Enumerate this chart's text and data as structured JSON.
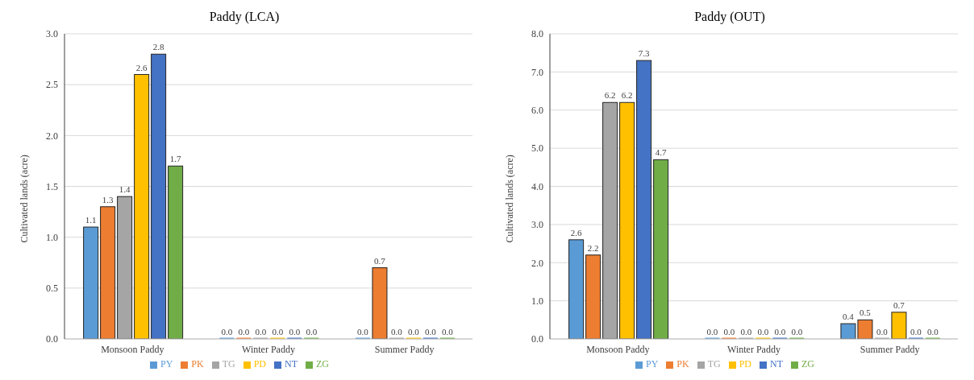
{
  "chart_data": [
    {
      "type": "bar",
      "title": "Paddy (LCA)",
      "ylabel": "Cultivated lands (acre)",
      "categories": [
        "Monsoon Paddy",
        "Winter Paddy",
        "Summer Paddy"
      ],
      "series": [
        {
          "name": "PY",
          "color": "#5b9bd5",
          "values": [
            1.1,
            0,
            0
          ],
          "value_labels": [
            "1.1",
            "0.0",
            "0.0"
          ]
        },
        {
          "name": "PK",
          "color": "#ed7d31",
          "values": [
            1.3,
            0,
            0.7
          ],
          "value_labels": [
            "1.3",
            "0.0",
            "0.7"
          ]
        },
        {
          "name": "TG",
          "color": "#a5a5a5",
          "values": [
            1.4,
            0,
            0
          ],
          "value_labels": [
            "1.4",
            "0.0",
            "0.0"
          ]
        },
        {
          "name": "PD",
          "color": "#ffc000",
          "values": [
            2.6,
            0,
            0
          ],
          "value_labels": [
            "2.6",
            "0.0",
            "0.0"
          ]
        },
        {
          "name": "NT",
          "color": "#4472c4",
          "values": [
            2.8,
            0,
            0
          ],
          "value_labels": [
            "2.8",
            "0.0",
            "0.0"
          ]
        },
        {
          "name": "ZG",
          "color": "#70ad47",
          "values": [
            1.7,
            0,
            0
          ],
          "value_labels": [
            "1.7",
            "0.0",
            "0.0"
          ]
        }
      ],
      "ylim": [
        0,
        3
      ],
      "yticks": [
        {
          "value": 0,
          "label": "0.0"
        },
        {
          "value": 0.5,
          "label": "0.5"
        },
        {
          "value": 1,
          "label": "1.0"
        },
        {
          "value": 1.5,
          "label": "1.5"
        },
        {
          "value": 2,
          "label": "2.0"
        },
        {
          "value": 2.5,
          "label": "2.5"
        },
        {
          "value": 3,
          "label": "3.0"
        }
      ],
      "grid": "y",
      "legend": "bottom"
    },
    {
      "type": "bar",
      "title": "Paddy (OUT)",
      "ylabel": "Cultivated lands (acre)",
      "categories": [
        "Monsoon Paddy",
        "Winter Paddy",
        "Summer Paddy"
      ],
      "series": [
        {
          "name": "PY",
          "color": "#5b9bd5",
          "values": [
            2.6,
            0,
            0.4
          ],
          "value_labels": [
            "2.6",
            "0.0",
            "0.4"
          ]
        },
        {
          "name": "PK",
          "color": "#ed7d31",
          "values": [
            2.2,
            0,
            0.5
          ],
          "value_labels": [
            "2.2",
            "0.0",
            "0.5"
          ]
        },
        {
          "name": "TG",
          "color": "#a5a5a5",
          "values": [
            6.2,
            0,
            0
          ],
          "value_labels": [
            "6.2",
            "0.0",
            "0.0"
          ]
        },
        {
          "name": "PD",
          "color": "#ffc000",
          "values": [
            6.2,
            0,
            0.7
          ],
          "value_labels": [
            "6.2",
            "0.0",
            "0.7"
          ]
        },
        {
          "name": "NT",
          "color": "#4472c4",
          "values": [
            7.3,
            0,
            0
          ],
          "value_labels": [
            "7.3",
            "0.0",
            "0.0"
          ]
        },
        {
          "name": "ZG",
          "color": "#70ad47",
          "values": [
            4.7,
            0,
            0
          ],
          "value_labels": [
            "4.7",
            "0.0",
            "0.0"
          ]
        }
      ],
      "ylim": [
        0,
        8
      ],
      "yticks": [
        {
          "value": 0,
          "label": "0.0"
        },
        {
          "value": 1,
          "label": "1.0"
        },
        {
          "value": 2,
          "label": "2.0"
        },
        {
          "value": 3,
          "label": "3.0"
        },
        {
          "value": 4,
          "label": "4.0"
        },
        {
          "value": 5,
          "label": "5.0"
        },
        {
          "value": 6,
          "label": "6.0"
        },
        {
          "value": 7,
          "label": "7.0"
        },
        {
          "value": 8,
          "label": "8.0"
        }
      ],
      "grid": "y",
      "legend": "bottom"
    }
  ]
}
